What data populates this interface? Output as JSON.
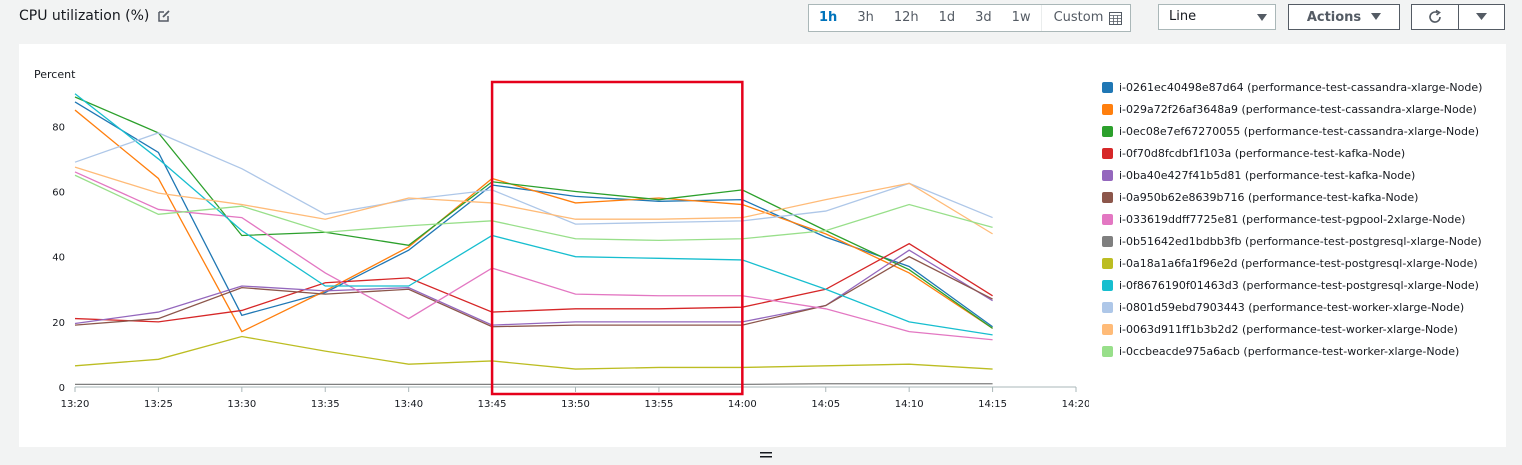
{
  "widget": {
    "title": "CPU utilization (%)",
    "edit_icon": "edit-icon",
    "ranges": [
      "1h",
      "3h",
      "12h",
      "1d",
      "3d",
      "1w"
    ],
    "active_range": "1h",
    "custom_label": "Custom",
    "calendar_icon": "calendar-icon",
    "view_type": "Line",
    "actions_label": "Actions",
    "refresh_icon": "refresh-icon",
    "dropdown_icon": "caret-down-icon"
  },
  "colors": {
    "accent": "#0073bb",
    "highlight_box": "#e5001b"
  },
  "chart_data": {
    "type": "line",
    "ylabel": "Percent",
    "xlabel": "",
    "x": [
      "13:20",
      "13:25",
      "13:30",
      "13:35",
      "13:40",
      "13:45",
      "13:50",
      "13:55",
      "14:00",
      "14:05",
      "14:10",
      "14:15"
    ],
    "x_ticks": [
      "13:20",
      "13:25",
      "13:30",
      "13:35",
      "13:40",
      "13:45",
      "13:50",
      "13:55",
      "14:00",
      "14:05",
      "14:10",
      "14:15",
      "14:20"
    ],
    "y_ticks": [
      0,
      20,
      40,
      60,
      80
    ],
    "ylim": [
      0,
      93
    ],
    "grid": false,
    "legend_position": "right",
    "highlight_range": [
      "13:45",
      "14:00"
    ],
    "series": [
      {
        "name": "i-0261ec40498e87d64 (performance-test-cassandra-xlarge-Node)",
        "color": "#1f77b4",
        "values": [
          87.5,
          72,
          22,
          29,
          42,
          62,
          58.5,
          57,
          57.5,
          46,
          37,
          18.5
        ]
      },
      {
        "name": "i-029a72f26af3648a9 (performance-test-cassandra-xlarge-Node)",
        "color": "#ff7f0e",
        "values": [
          85,
          64,
          17,
          29.5,
          43,
          64,
          56.5,
          58,
          56,
          47,
          35,
          18
        ]
      },
      {
        "name": "i-0ec08e7ef67270055 (performance-test-cassandra-xlarge-Node)",
        "color": "#2ca02c",
        "values": [
          89,
          78,
          46.5,
          47.5,
          43.5,
          63,
          60,
          57.5,
          60.5,
          48,
          36,
          18
        ]
      },
      {
        "name": "i-0f70d8fcdbf1f103a (performance-test-kafka-Node)",
        "color": "#d62728",
        "values": [
          21,
          20,
          23.5,
          32,
          33.5,
          23,
          24,
          24,
          24.5,
          30,
          44,
          28
        ]
      },
      {
        "name": "i-0ba40e427f41b5d81 (performance-test-kafka-Node)",
        "color": "#9467bd",
        "values": [
          19.5,
          23,
          31,
          29.5,
          30.5,
          19,
          20,
          20,
          20,
          25,
          42,
          26.5
        ]
      },
      {
        "name": "i-0a950b62e8639b716 (performance-test-kafka-Node)",
        "color": "#8c564b",
        "values": [
          19,
          21,
          30.5,
          28.5,
          30,
          18.5,
          19,
          19,
          19,
          25,
          40,
          27
        ]
      },
      {
        "name": "i-033619ddff7725e81 (performance-test-pgpool-2xlarge-Node)",
        "color": "#e377c2",
        "values": [
          66,
          54.5,
          52,
          35,
          21,
          36.5,
          28.5,
          28,
          28,
          24,
          17,
          14.5
        ]
      },
      {
        "name": "i-0b51642ed1bdbb3fb (performance-test-postgresql-xlarge-Node)",
        "color": "#7f7f7f",
        "values": [
          0.8,
          0.8,
          0.8,
          0.8,
          0.8,
          0.8,
          0.8,
          0.8,
          0.8,
          1,
          1,
          1
        ]
      },
      {
        "name": "i-0a18a1a6fa1f96e2d (performance-test-postgresql-xlarge-Node)",
        "color": "#bcbd22",
        "values": [
          6.5,
          8.5,
          15.5,
          11,
          7,
          8,
          5.5,
          6,
          6,
          6.5,
          7,
          5.5
        ]
      },
      {
        "name": "i-0f8676190f01463d3 (performance-test-postgresql-xlarge-Node)",
        "color": "#17becf",
        "values": [
          90,
          70,
          48,
          31,
          31,
          46.5,
          40,
          39.5,
          39,
          30,
          20,
          16
        ]
      },
      {
        "name": "i-0801d59ebd7903443 (performance-test-worker-xlarge-Node)",
        "color": "#aec7e8",
        "values": [
          69,
          78,
          67,
          53,
          57.5,
          60.5,
          50,
          50.5,
          51,
          54,
          62.5,
          52
        ]
      },
      {
        "name": "i-0063d911ff1b3b2d2 (performance-test-worker-xlarge-Node)",
        "color": "#ffbb78",
        "values": [
          67.5,
          59.5,
          56,
          51.5,
          58,
          56.5,
          51.5,
          51.5,
          52,
          57.5,
          62.5,
          47
        ]
      },
      {
        "name": "i-0ccbeacde975a6acb (performance-test-worker-xlarge-Node)",
        "color": "#98df8a",
        "values": [
          65,
          53,
          55.5,
          47.5,
          49.5,
          51,
          45.5,
          45,
          45.5,
          48,
          56,
          49
        ]
      }
    ]
  }
}
